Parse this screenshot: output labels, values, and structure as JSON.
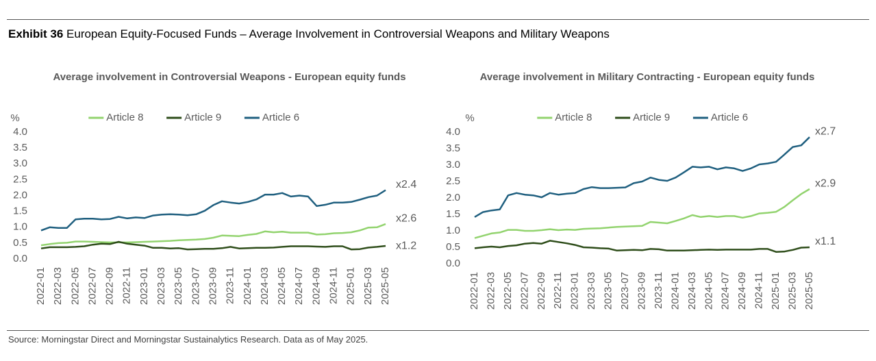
{
  "header": {
    "exhibit": "Exhibit 36",
    "title": "European Equity-Focused Funds – Average Involvement in Controversial Weapons and Military Weapons"
  },
  "source": "Source: Morningstar Direct and Morningstar Sustainalytics Research. Data as of May 2025.",
  "chart_data": [
    {
      "type": "line",
      "title": "Average involvement in Controversial Weapons - European equity funds",
      "y_label": "%",
      "categories": [
        "2022-01",
        null,
        "2022-03",
        null,
        "2022-05",
        null,
        "2022-07",
        null,
        "2022-09",
        null,
        "2022-11",
        null,
        "2023-01",
        null,
        "2023-03",
        null,
        "2023-05",
        null,
        "2023-07",
        null,
        "2023-09",
        null,
        "2023-11",
        null,
        "2024-01",
        null,
        "2024-03",
        null,
        "2024-05",
        null,
        "2024-07",
        null,
        "2024-09",
        null,
        "2024-11",
        null,
        "2025-01",
        null,
        "2025-03",
        null,
        "2025-05"
      ],
      "ylim": [
        0,
        4
      ],
      "yticks": [
        {
          "value": 0,
          "label": "0.0"
        },
        0.5,
        {
          "value": 1,
          "label": "1.0"
        },
        1.5,
        {
          "value": 2,
          "label": "2.0"
        },
        2.5,
        {
          "value": 3,
          "label": "3.0"
        },
        3.5,
        {
          "value": 4,
          "label": "4.0"
        }
      ],
      "grid": false,
      "legend": "top",
      "series": [
        {
          "name": "Article 8",
          "color": "#92d36e",
          "annotation": "x2.6",
          "values": [
            0.43,
            0.47,
            0.5,
            0.51,
            0.55,
            0.55,
            0.54,
            0.53,
            0.52,
            0.52,
            0.52,
            0.53,
            0.54,
            0.55,
            0.56,
            0.57,
            0.59,
            0.6,
            0.61,
            0.63,
            0.67,
            0.74,
            0.73,
            0.72,
            0.76,
            0.79,
            0.87,
            0.84,
            0.86,
            0.83,
            0.83,
            0.83,
            0.77,
            0.78,
            0.81,
            0.82,
            0.84,
            0.9,
            0.99,
            1.0,
            1.1
          ]
        },
        {
          "name": "Article 9",
          "color": "#2e4d1a",
          "annotation": "x1.2",
          "values": [
            0.33,
            0.37,
            0.37,
            0.37,
            0.38,
            0.4,
            0.45,
            0.48,
            0.47,
            0.54,
            0.48,
            0.45,
            0.42,
            0.35,
            0.35,
            0.33,
            0.34,
            0.3,
            0.31,
            0.32,
            0.32,
            0.34,
            0.38,
            0.33,
            0.34,
            0.35,
            0.35,
            0.36,
            0.38,
            0.4,
            0.4,
            0.4,
            0.39,
            0.38,
            0.4,
            0.4,
            0.3,
            0.31,
            0.36,
            0.38,
            0.41
          ]
        },
        {
          "name": "Article 6",
          "color": "#1f5f7f",
          "annotation": "x2.4",
          "values": [
            0.9,
            1.0,
            0.98,
            0.98,
            1.25,
            1.27,
            1.27,
            1.25,
            1.26,
            1.33,
            1.28,
            1.31,
            1.29,
            1.37,
            1.4,
            1.41,
            1.4,
            1.38,
            1.41,
            1.52,
            1.7,
            1.82,
            1.78,
            1.75,
            1.8,
            1.88,
            2.03,
            2.03,
            2.08,
            1.97,
            2.0,
            1.97,
            1.67,
            1.71,
            1.78,
            1.78,
            1.8,
            1.87,
            1.95,
            2.0,
            2.17
          ]
        }
      ]
    },
    {
      "type": "line",
      "title": "Average involvement in Military Contracting - European equity funds",
      "y_label": "%",
      "categories": [
        "2022-01",
        null,
        "2022-03",
        null,
        "2022-05",
        null,
        "2022-07",
        null,
        "2022-09",
        null,
        "2022-11",
        null,
        "2023-01",
        null,
        "2023-03",
        null,
        "2023-05",
        null,
        "2023-07",
        null,
        "2023-09",
        null,
        "2023-11",
        null,
        "2024-01",
        null,
        "2024-03",
        null,
        "2024-05",
        null,
        "2024-07",
        null,
        "2024-09",
        null,
        "2024-11",
        null,
        "2025-01",
        null,
        "2025-03",
        null,
        "2025-05"
      ],
      "ylim": [
        0,
        4
      ],
      "yticks": [
        {
          "value": 0,
          "label": "0.0"
        },
        0.5,
        {
          "value": 1,
          "label": "1.0"
        },
        1.5,
        {
          "value": 2,
          "label": "2.0"
        },
        2.5,
        {
          "value": 3,
          "label": "3.0"
        },
        3.5,
        {
          "value": 4,
          "label": "4.0"
        }
      ],
      "grid": false,
      "legend": "top",
      "series": [
        {
          "name": "Article 8",
          "color": "#92d36e",
          "annotation": "x2.9",
          "values": [
            0.78,
            0.85,
            0.92,
            0.95,
            1.03,
            1.03,
            1.0,
            1.0,
            1.02,
            1.05,
            1.02,
            1.04,
            1.03,
            1.06,
            1.07,
            1.08,
            1.1,
            1.12,
            1.13,
            1.14,
            1.15,
            1.27,
            1.25,
            1.23,
            1.3,
            1.38,
            1.48,
            1.42,
            1.45,
            1.42,
            1.45,
            1.45,
            1.4,
            1.45,
            1.53,
            1.55,
            1.58,
            1.73,
            1.93,
            2.12,
            2.27
          ]
        },
        {
          "name": "Article 9",
          "color": "#2e4d1a",
          "annotation": "x1.1",
          "values": [
            0.47,
            0.5,
            0.52,
            0.5,
            0.54,
            0.56,
            0.61,
            0.63,
            0.61,
            0.7,
            0.66,
            0.62,
            0.57,
            0.5,
            0.49,
            0.47,
            0.46,
            0.4,
            0.41,
            0.42,
            0.41,
            0.45,
            0.44,
            0.4,
            0.4,
            0.4,
            0.41,
            0.42,
            0.43,
            0.42,
            0.43,
            0.43,
            0.43,
            0.43,
            0.45,
            0.45,
            0.36,
            0.37,
            0.42,
            0.49,
            0.5
          ]
        },
        {
          "name": "Article 6",
          "color": "#1f5f7f",
          "annotation": "x2.7",
          "values": [
            1.42,
            1.57,
            1.62,
            1.65,
            2.08,
            2.15,
            2.1,
            2.08,
            2.02,
            2.15,
            2.1,
            2.13,
            2.15,
            2.27,
            2.33,
            2.3,
            2.3,
            2.31,
            2.32,
            2.45,
            2.5,
            2.62,
            2.55,
            2.52,
            2.62,
            2.78,
            2.95,
            2.93,
            2.95,
            2.87,
            2.93,
            2.9,
            2.82,
            2.9,
            3.02,
            3.05,
            3.1,
            3.32,
            3.55,
            3.6,
            3.85
          ]
        }
      ]
    }
  ]
}
